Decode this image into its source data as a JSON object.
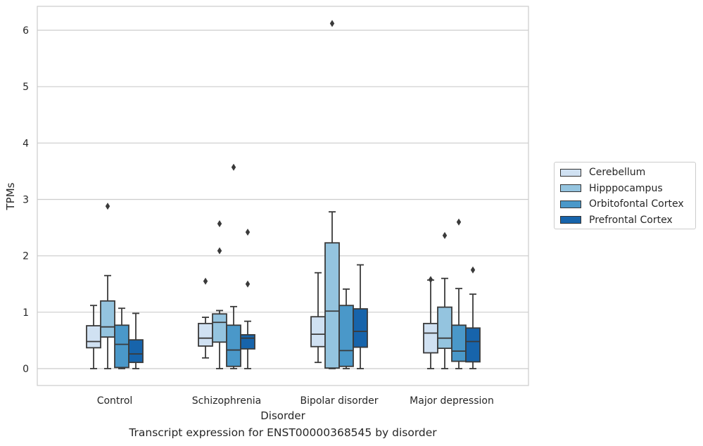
{
  "chart_data": {
    "type": "box",
    "title": "",
    "caption": "Transcript expression for ENST00000368545 by disorder",
    "xlabel": "Disorder",
    "ylabel": "TPMs",
    "ylim": [
      -0.3,
      6.42
    ],
    "yticks": [
      0,
      1,
      2,
      3,
      4,
      5,
      6
    ],
    "grid": true,
    "legend_position": "right",
    "categories": [
      "Control",
      "Schizophrenia",
      "Bipolar disorder",
      "Major depression"
    ],
    "series": [
      {
        "name": "Cerebellum",
        "color": "#d0e1f2",
        "boxes": [
          {
            "whisker_low": 0.0,
            "q1": 0.37,
            "median": 0.48,
            "q3": 0.76,
            "whisker_high": 1.12,
            "outliers": []
          },
          {
            "whisker_low": 0.19,
            "q1": 0.4,
            "median": 0.54,
            "q3": 0.8,
            "whisker_high": 0.91,
            "outliers": [
              1.55
            ]
          },
          {
            "whisker_low": 0.11,
            "q1": 0.39,
            "median": 0.61,
            "q3": 0.92,
            "whisker_high": 1.7,
            "outliers": []
          },
          {
            "whisker_low": 0.0,
            "q1": 0.28,
            "median": 0.63,
            "q3": 0.8,
            "whisker_high": 1.57,
            "outliers": [
              1.58
            ]
          }
        ]
      },
      {
        "name": "Hipppocampus",
        "color": "#94c4df",
        "boxes": [
          {
            "whisker_low": 0.0,
            "q1": 0.56,
            "median": 0.74,
            "q3": 1.2,
            "whisker_high": 1.65,
            "outliers": [
              2.88
            ]
          },
          {
            "whisker_low": 0.0,
            "q1": 0.47,
            "median": 0.82,
            "q3": 0.97,
            "whisker_high": 1.03,
            "outliers": [
              2.09,
              2.57
            ]
          },
          {
            "whisker_low": 0.0,
            "q1": 0.01,
            "median": 1.02,
            "q3": 2.23,
            "whisker_high": 2.78,
            "outliers": [
              6.12
            ]
          },
          {
            "whisker_low": 0.0,
            "q1": 0.36,
            "median": 0.54,
            "q3": 1.09,
            "whisker_high": 1.6,
            "outliers": [
              2.36
            ]
          }
        ]
      },
      {
        "name": "Orbitofontal Cortex",
        "color": "#4a98c9",
        "boxes": [
          {
            "whisker_low": 0.0,
            "q1": 0.02,
            "median": 0.43,
            "q3": 0.77,
            "whisker_high": 1.07,
            "outliers": []
          },
          {
            "whisker_low": 0.0,
            "q1": 0.04,
            "median": 0.33,
            "q3": 0.77,
            "whisker_high": 1.1,
            "outliers": [
              3.57
            ]
          },
          {
            "whisker_low": 0.0,
            "q1": 0.04,
            "median": 0.32,
            "q3": 1.12,
            "whisker_high": 1.41,
            "outliers": []
          },
          {
            "whisker_low": 0.0,
            "q1": 0.13,
            "median": 0.31,
            "q3": 0.77,
            "whisker_high": 1.42,
            "outliers": [
              2.6
            ]
          }
        ]
      },
      {
        "name": "Prefrontal Cortex",
        "color": "#1764ab",
        "boxes": [
          {
            "whisker_low": 0.0,
            "q1": 0.11,
            "median": 0.26,
            "q3": 0.51,
            "whisker_high": 0.98,
            "outliers": []
          },
          {
            "whisker_low": 0.0,
            "q1": 0.35,
            "median": 0.54,
            "q3": 0.6,
            "whisker_high": 0.84,
            "outliers": [
              1.5,
              2.42
            ]
          },
          {
            "whisker_low": 0.0,
            "q1": 0.38,
            "median": 0.66,
            "q3": 1.06,
            "whisker_high": 1.84,
            "outliers": []
          },
          {
            "whisker_low": 0.0,
            "q1": 0.12,
            "median": 0.48,
            "q3": 0.72,
            "whisker_high": 1.32,
            "outliers": [
              1.75
            ]
          }
        ]
      }
    ]
  }
}
